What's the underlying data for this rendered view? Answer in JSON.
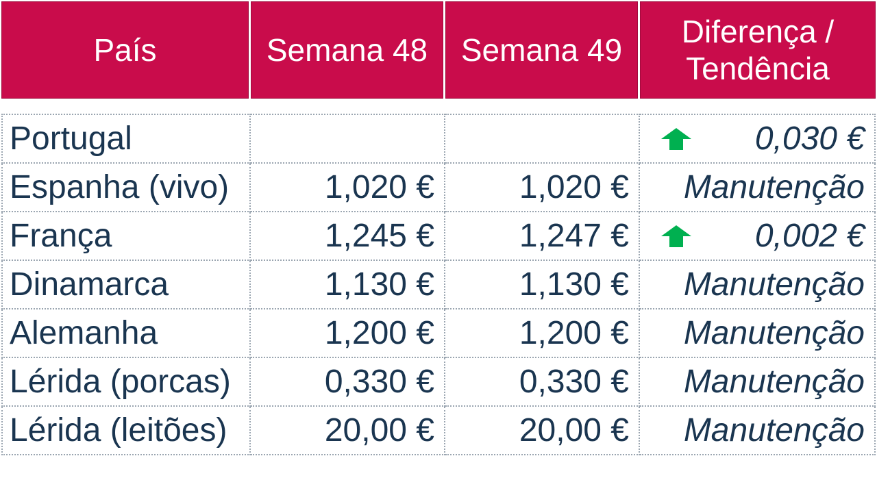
{
  "header": {
    "country": "País",
    "week_a": "Semana 48",
    "week_b": "Semana 49",
    "trend_line1": "Diferença /",
    "trend_line2": "Tendência"
  },
  "colors": {
    "header_bg": "#c90c4b",
    "text": "#1a3550",
    "up_arrow": "#00b050"
  },
  "rows": [
    {
      "country": "Portugal",
      "week_a": "",
      "week_b": "",
      "trend": "0,030 €",
      "arrow": "up-arrow-icon"
    },
    {
      "country": "Espanha (vivo)",
      "week_a": "1,020 €",
      "week_b": "1,020 €",
      "trend": "Manutenção"
    },
    {
      "country": "França",
      "week_a": "1,245 €",
      "week_b": "1,247 €",
      "trend": "0,002 €",
      "arrow": "up-arrow-icon"
    },
    {
      "country": "Dinamarca",
      "week_a": "1,130 €",
      "week_b": "1,130 €",
      "trend": "Manutenção"
    },
    {
      "country": "Alemanha",
      "week_a": "1,200 €",
      "week_b": "1,200 €",
      "trend": "Manutenção"
    },
    {
      "country": "Lérida (porcas)",
      "week_a": "0,330 €",
      "week_b": "0,330 €",
      "trend": "Manutenção"
    },
    {
      "country": "Lérida (leitões)",
      "week_a": "20,00 €",
      "week_b": "20,00 €",
      "trend": "Manutenção"
    }
  ]
}
